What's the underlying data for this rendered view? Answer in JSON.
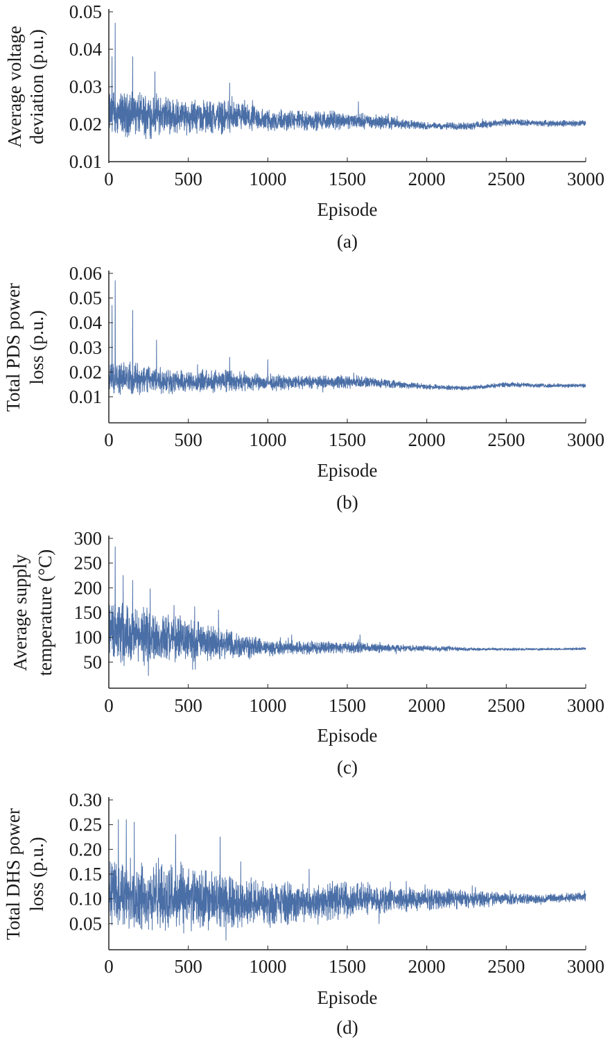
{
  "chart_data": [
    {
      "type": "line",
      "panel_label": "(a)",
      "xlabel": "Episode",
      "ylabel": [
        "Average voltage",
        "deviation (p.u.)"
      ],
      "xlim": [
        0,
        3000
      ],
      "ylim": [
        0.01,
        0.05
      ],
      "xticks": [
        "0",
        "500",
        "1000",
        "1500",
        "2000",
        "2500",
        "3000"
      ],
      "yticks": [
        "0.01",
        "0.02",
        "0.03",
        "0.04",
        "0.05"
      ],
      "grid": false,
      "color": "#4a6ea6",
      "envelope": {
        "episodes": [
          0,
          250,
          500,
          750,
          1000,
          1250,
          1500,
          1750,
          2000,
          2250,
          2500,
          2750,
          3000
        ],
        "mean": [
          0.023,
          0.0225,
          0.022,
          0.022,
          0.021,
          0.021,
          0.021,
          0.0205,
          0.0195,
          0.0195,
          0.0205,
          0.0202,
          0.0203
        ],
        "spread": [
          0.007,
          0.0065,
          0.005,
          0.005,
          0.0035,
          0.003,
          0.0025,
          0.002,
          0.0011,
          0.0011,
          0.0011,
          0.0009,
          0.0009
        ]
      },
      "peaks": [
        [
          40,
          0.047
        ],
        [
          20,
          0.038
        ],
        [
          150,
          0.038
        ],
        [
          290,
          0.034
        ],
        [
          760,
          0.031
        ],
        [
          1570,
          0.026
        ]
      ]
    },
    {
      "type": "line",
      "panel_label": "(b)",
      "xlabel": "Episode",
      "ylabel": [
        "Total PDS power",
        "loss (p.u.)"
      ],
      "xlim": [
        0,
        3000
      ],
      "ylim": [
        0,
        0.06
      ],
      "xticks": [
        "0",
        "500",
        "1000",
        "1500",
        "2000",
        "2500",
        "3000"
      ],
      "yticks": [
        "0.01",
        "0.02",
        "0.03",
        "0.04",
        "0.05",
        "0.06"
      ],
      "grid": false,
      "color": "#4a6ea6",
      "envelope": {
        "episodes": [
          0,
          250,
          500,
          750,
          1000,
          1250,
          1500,
          1750,
          2000,
          2250,
          2500,
          2750,
          3000
        ],
        "mean": [
          0.018,
          0.017,
          0.016,
          0.0165,
          0.0155,
          0.016,
          0.016,
          0.0155,
          0.014,
          0.0135,
          0.015,
          0.0145,
          0.0145
        ],
        "spread": [
          0.008,
          0.007,
          0.005,
          0.005,
          0.0035,
          0.003,
          0.003,
          0.002,
          0.0012,
          0.0009,
          0.0011,
          0.0009,
          0.0009
        ]
      },
      "peaks": [
        [
          40,
          0.057
        ],
        [
          20,
          0.047
        ],
        [
          150,
          0.045
        ],
        [
          300,
          0.033
        ],
        [
          760,
          0.026
        ],
        [
          1000,
          0.025
        ]
      ]
    },
    {
      "type": "line",
      "panel_label": "(c)",
      "xlabel": "Episode",
      "ylabel": [
        "Average supply",
        "temperature (°C)"
      ],
      "xlim": [
        0,
        3000
      ],
      "ylim": [
        0,
        300
      ],
      "xticks": [
        "0",
        "500",
        "1000",
        "1500",
        "2000",
        "2500",
        "3000"
      ],
      "yticks": [
        "50",
        "100",
        "150",
        "200",
        "250",
        "300"
      ],
      "grid": false,
      "color": "#4a6ea6",
      "envelope": {
        "episodes": [
          0,
          250,
          500,
          750,
          1000,
          1250,
          1500,
          1750,
          2000,
          2250,
          2500,
          2750,
          3000
        ],
        "mean": [
          110,
          100,
          95,
          85,
          78,
          80,
          80,
          78,
          78,
          76,
          76,
          76,
          77
        ],
        "spread": [
          70,
          60,
          50,
          35,
          18,
          15,
          13,
          9,
          6,
          4,
          3,
          2.5,
          2.5
        ]
      },
      "peaks": [
        [
          40,
          283
        ],
        [
          90,
          225
        ],
        [
          150,
          215
        ],
        [
          260,
          198
        ],
        [
          540,
          162
        ],
        [
          690,
          155
        ],
        [
          1150,
          105
        ],
        [
          1580,
          105
        ]
      ]
    },
    {
      "type": "line",
      "panel_label": "(d)",
      "xlabel": "Episode",
      "ylabel": [
        "Total DHS power",
        "loss (p.u.)"
      ],
      "xlim": [
        0,
        3000
      ],
      "ylim": [
        0,
        0.3
      ],
      "xticks": [
        "0",
        "500",
        "1000",
        "1500",
        "2000",
        "2500",
        "3000"
      ],
      "yticks": [
        "0.05",
        "0.10",
        "0.15",
        "0.20",
        "0.25",
        "0.30"
      ],
      "grid": false,
      "color": "#4a6ea6",
      "envelope": {
        "episodes": [
          0,
          250,
          500,
          750,
          1000,
          1250,
          1500,
          1750,
          2000,
          2250,
          2500,
          2750,
          3000
        ],
        "mean": [
          0.11,
          0.105,
          0.1,
          0.095,
          0.09,
          0.095,
          0.1,
          0.1,
          0.1,
          0.1,
          0.1,
          0.1,
          0.105
        ],
        "spread": [
          0.08,
          0.075,
          0.075,
          0.06,
          0.05,
          0.045,
          0.04,
          0.03,
          0.025,
          0.02,
          0.013,
          0.01,
          0.01
        ]
      },
      "peaks": [
        [
          60,
          0.26
        ],
        [
          110,
          0.26
        ],
        [
          160,
          0.255
        ],
        [
          420,
          0.23
        ],
        [
          700,
          0.225
        ],
        [
          830,
          0.175
        ],
        [
          1260,
          0.16
        ],
        [
          1700,
          0.05
        ]
      ]
    }
  ]
}
